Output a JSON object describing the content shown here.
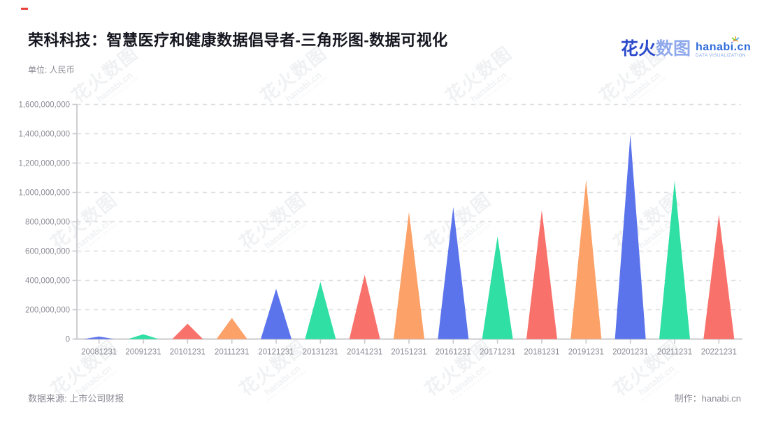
{
  "header": {
    "title": "荣科科技：智慧医疗和健康数据倡导者-三角形图-数据可视化",
    "unit_label": "单位: 人民币"
  },
  "logo": {
    "zh_primary": "花火",
    "zh_secondary": "数图",
    "domain": "hanabi.cn",
    "tagline": "DATA VISUALIZATION",
    "spark_colors": [
      "#f5a623",
      "#7ed321",
      "#49a3e8",
      "#f06a5c"
    ]
  },
  "watermark": {
    "zh": "花火数图",
    "en": "hanabi.cn",
    "tagline": "DATA VISUALIZATION"
  },
  "footer": {
    "source": "数据来源: 上市公司财报",
    "credit": "制作：hanabi.cn"
  },
  "chart_data": {
    "type": "bar",
    "mark_shape": "triangle",
    "title": "荣科科技：智慧医疗和健康数据倡导者-三角形图-数据可视化",
    "xlabel": "",
    "ylabel": "单位: 人民币",
    "categories": [
      "20081231",
      "20091231",
      "20101231",
      "20111231",
      "20121231",
      "20131231",
      "20141231",
      "20151231",
      "20161231",
      "20171231",
      "20181231",
      "20191231",
      "20201231",
      "20211231",
      "20221231"
    ],
    "values": [
      17000000,
      33000000,
      105000000,
      144000000,
      343000000,
      390000000,
      438000000,
      867000000,
      900000000,
      700000000,
      880000000,
      1086000000,
      1395000000,
      1080000000,
      848000000
    ],
    "palette": [
      "#5b74ec",
      "#2fdfa4",
      "#f9716b",
      "#fca168"
    ],
    "ylim": [
      0,
      1600000000
    ],
    "ytick_interval": 200000000,
    "grid": true,
    "gridline_style": "dashed",
    "legend": "none",
    "axis_color": "#c9c9ce",
    "gridline_color": "#dcdce0",
    "tick_label_color": "#8b8b95"
  }
}
